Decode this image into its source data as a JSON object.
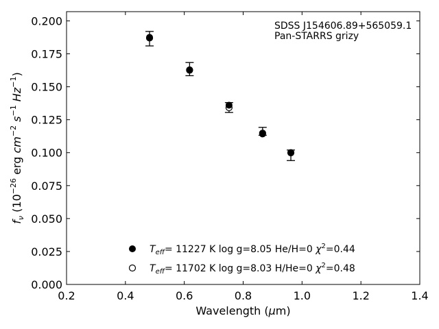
{
  "chart_data": {
    "type": "scatter",
    "xlabel": "Wavelength (μm)",
    "ylabel": "fν (10⁻²⁶ erg cm⁻² s⁻¹ Hz⁻¹)",
    "xlim": [
      0.2,
      1.4
    ],
    "ylim": [
      0.0,
      0.207
    ],
    "xticks": [
      0.2,
      0.4,
      0.6,
      0.8,
      1.0,
      1.2,
      1.4
    ],
    "xtick_labels": [
      "0.2",
      "0.4",
      "0.6",
      "0.8",
      "1.0",
      "1.2",
      "1.4"
    ],
    "yticks": [
      0.0,
      0.025,
      0.05,
      0.075,
      0.1,
      0.125,
      0.15,
      0.175,
      0.2
    ],
    "ytick_labels": [
      "0.000",
      "0.025",
      "0.050",
      "0.075",
      "0.100",
      "0.125",
      "0.150",
      "0.175",
      "0.200"
    ],
    "grid": false,
    "annotations": [
      "SDSS J154606.89+565059.1",
      "Pan-STARRS grizy"
    ],
    "observed": {
      "x": [
        0.482,
        0.618,
        0.752,
        0.866,
        0.962
      ],
      "y": [
        0.1865,
        0.1634,
        0.1345,
        0.1157,
        0.098
      ],
      "yerr_low": [
        0.0055,
        0.005,
        0.004,
        0.0025,
        0.004
      ],
      "yerr_high": [
        0.0055,
        0.005,
        0.0035,
        0.0035,
        0.004
      ]
    },
    "series": [
      {
        "name": "Teff= 11227 K  log g=8.05  He/H=0  χ²=0.44",
        "marker": "filled-circle",
        "color": "#000000",
        "x": [
          0.482,
          0.618,
          0.752,
          0.866,
          0.962
        ],
        "y": [
          0.1875,
          0.1625,
          0.136,
          0.1142,
          0.0998
        ]
      },
      {
        "name": "Teff= 11702 K  log g=8.03  H/He=0  χ²=0.48",
        "marker": "open-circle",
        "color": "#000000",
        "x": [
          0.482,
          0.618,
          0.752,
          0.866,
          0.962
        ],
        "y": [
          0.187,
          0.1628,
          0.1342,
          0.1148,
          0.1
        ]
      }
    ],
    "legend_location": "lower-center"
  }
}
